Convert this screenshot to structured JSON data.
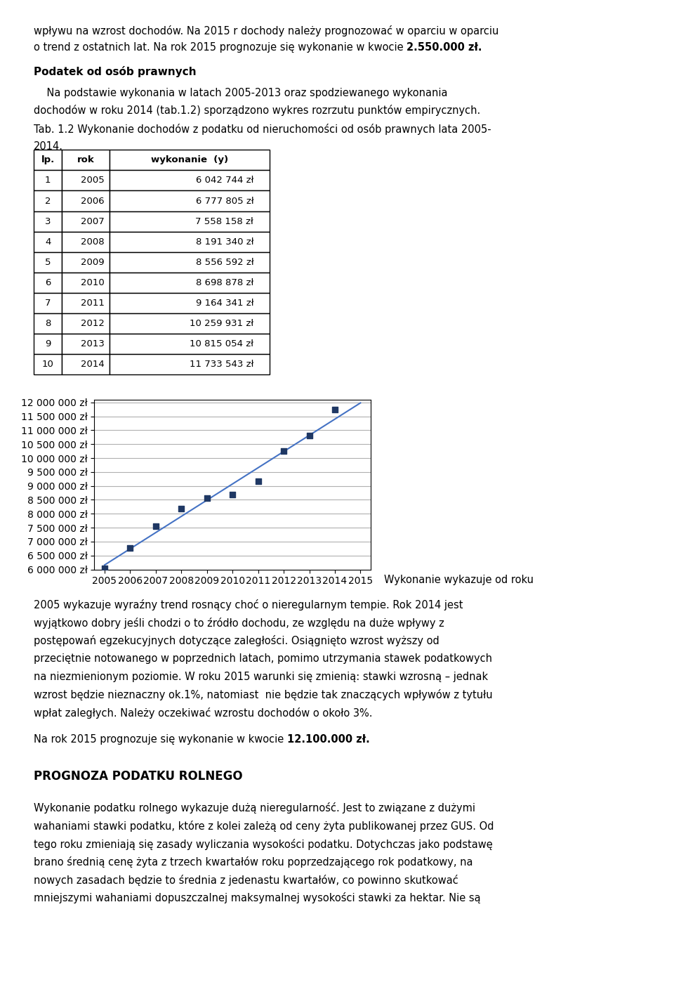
{
  "chart_data": {
    "type": "scatter",
    "x": [
      2005,
      2006,
      2007,
      2008,
      2009,
      2010,
      2011,
      2012,
      2013,
      2014
    ],
    "values": [
      6042744,
      6777805,
      7558158,
      8191340,
      8556592,
      8698878,
      9164341,
      10259931,
      10815054,
      11733543
    ],
    "value_labels": [
      "6 042 744 zł",
      "6 777 805 zł",
      "7 558 158 zł",
      "8 191 340 zł",
      "8 556 592 zł",
      "8 698 878 zł",
      "9 164 341 zł",
      "10 259 931 zł",
      "10 815 054 zł",
      "11 733 543 zł"
    ],
    "color": "#1F3864",
    "marker": "square",
    "trend": {
      "type": "line",
      "x": [
        2005,
        2015
      ],
      "values": [
        6160345.29,
        11981441.53
      ],
      "color": "#4472C4"
    },
    "xlim": [
      2004.6,
      2015.4
    ],
    "xticks": [
      2005,
      2006,
      2007,
      2008,
      2009,
      2010,
      2011,
      2012,
      2013,
      2014,
      2015
    ],
    "ylim": [
      6000000,
      12100000
    ],
    "yticks": [
      {
        "value": 6000000,
        "label": "6 000 000 zł"
      },
      {
        "value": 6500000,
        "label": "6 500 000 zł"
      },
      {
        "value": 7000000,
        "label": "7 000 000 zł"
      },
      {
        "value": 7500000,
        "label": "7 500 000 zł"
      },
      {
        "value": 8000000,
        "label": "8 000 000 zł"
      },
      {
        "value": 8500000,
        "label": "8 500 000 zł"
      },
      {
        "value": 9000000,
        "label": "9 000 000 zł"
      },
      {
        "value": 9500000,
        "label": "9 500 000 zł"
      },
      {
        "value": 10000000,
        "label": "10 000 000 zł"
      },
      {
        "value": 10500000,
        "label": "10 500 000 zł"
      },
      {
        "value": 11000000,
        "label": "11 000 000 zł"
      },
      {
        "value": 11500000,
        "label": "11 500 000 zł"
      },
      {
        "value": 12000000,
        "label": "12 000 000 zł"
      }
    ],
    "grid": "y",
    "table": {
      "columns": [
        "lp.",
        "rok",
        "wykonanie  (y)"
      ],
      "lp": [
        1,
        2,
        3,
        4,
        5,
        6,
        7,
        8,
        9,
        10
      ]
    },
    "annotations": {
      "intro_1": "wpływu na wzrost dochodów. Na 2015 r dochody należy prognozować w oparciu w oparciu",
      "intro_2": "o trend z ostatnich lat. Na rok 2015 prognozuje się wykonanie w kwocie ",
      "intro_2_bold": "2.550.000 zł.",
      "header": "Podatek od osób prawnych",
      "body": [
        "    Na podstawie wykonania w latach 2005-2013 oraz spodziewanego wykonania",
        "dochodów w roku 2014 (tab.1.2) sporządzono wykres rozrzutu punktów empirycznych."
      ],
      "caption": [
        "Tab. 1.2 Wykonanie dochodów z podatku od nieruchomości od osób prawnych lata 2005-",
        "2014."
      ],
      "side_text": "Wykonanie wykazuje od roku",
      "paragraph": [
        "2005 wykazuje wyraźny trend rosnący choć o nieregularnym tempie. Rok 2014 jest",
        "wyjątkowo dobry jeśli chodzi o to źródło dochodu, ze względu na duże wpływy z",
        "postępowań egzekucyjnych dotyczące zaległości. Osiągnięto wzrost wyższy od",
        "przeciętnie notowanego w poprzednich latach, pomimo utrzymania stawek podatkowych",
        "na niezmienionym poziomie. W roku 2015 warunki się zmienią: stawki wzrosną – jednak",
        "wzrost będzie nieznaczny ok.1%, natomiast  nie będzie tak znaczących wpływów z tytułu",
        "wpłat zaległych. Należy oczekiwać wzrostu dochodów o około 3%."
      ],
      "prognoza": "Na rok 2015 prognozuje się wykonanie w kwocie ",
      "prognoza_bold": "12.100.000 zł.",
      "header2": "PROGNOZA PODATKU ROLNEGO",
      "rolne": [
        "Wykonanie podatku rolnego wykazuje dużą nieregularność. Jest to związane z dużymi",
        "wahaniami stawki podatku, które z kolei zależą od ceny żyta publikowanej przez GUS. Od",
        "tego roku zmieniają się zasady wyliczania wysokości podatku. Dotychczas jako podstawę",
        "brano średnią cenę żyta z trzech kwartałów roku poprzedzającego rok podatkowy, na",
        "nowych zasadach będzie to średnia z jedenastu kwartałów, co powinno skutkować",
        "mniejszymi wahaniami dopuszczalnej maksymalnej wysokości stawki za hektar. Nie są"
      ]
    }
  }
}
